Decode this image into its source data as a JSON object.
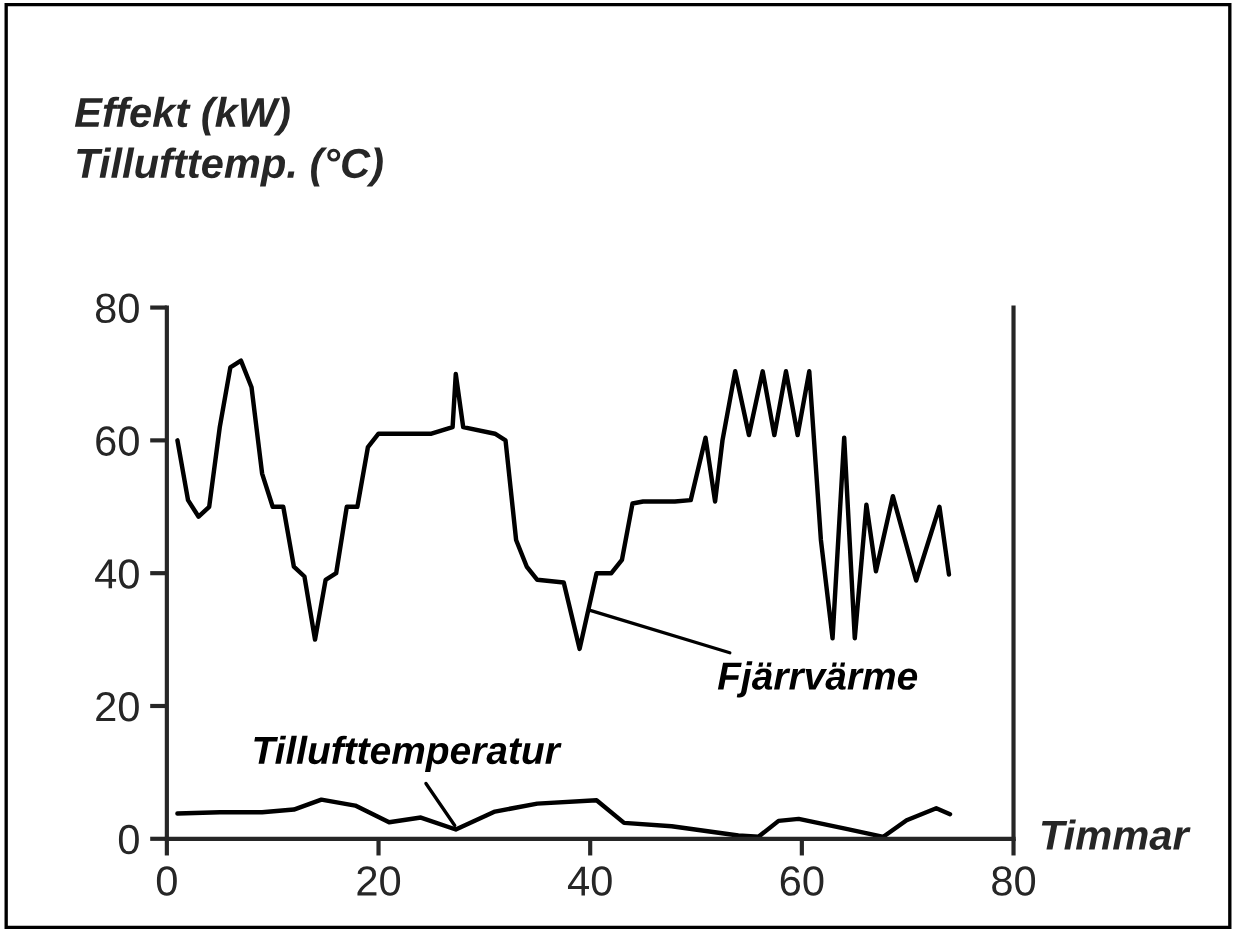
{
  "chart_data": {
    "type": "line",
    "ylabel": "Effekt (kW)\nTillufttemp. (°C)",
    "xlabel": "Timmar",
    "xlim": [
      0,
      80
    ],
    "ylim": [
      0,
      80
    ],
    "xticks": [
      0,
      20,
      40,
      60,
      80
    ],
    "yticks": [
      0,
      20,
      40,
      60,
      80
    ],
    "grid": false,
    "marker": "none",
    "line_style": "solid",
    "series": [
      {
        "name": "Fjärrvärme",
        "color": "#000000",
        "x": [
          1,
          2,
          3,
          4,
          5,
          6,
          7,
          8,
          9,
          10,
          11,
          12,
          13,
          14,
          15,
          16,
          17,
          18,
          19,
          20,
          25,
          27,
          27.3,
          28,
          31,
          32,
          33,
          34,
          35,
          37.5,
          39,
          40.6,
          42,
          43,
          44,
          45,
          48,
          49.5,
          50.9,
          51.8,
          52.5,
          53.7,
          55,
          56.3,
          57.4,
          58.5,
          59.6,
          60.7,
          61.8,
          62.9,
          64,
          65,
          66.1,
          67,
          68.6,
          70.8,
          73,
          73.9
        ],
        "values": [
          60,
          51,
          48.5,
          50,
          62,
          71,
          72,
          68,
          55,
          50,
          50,
          41,
          39.5,
          30,
          39,
          40,
          50,
          50,
          59,
          61,
          61,
          62,
          70,
          62,
          61,
          60,
          45,
          41,
          39,
          38.6,
          28.6,
          40,
          40,
          42,
          50.5,
          50.8,
          50.8,
          51,
          60.4,
          50.8,
          60,
          70.4,
          60.8,
          70.4,
          60.8,
          70.4,
          60.8,
          70.4,
          45,
          30.2,
          60.4,
          30.2,
          50.3,
          40.3,
          51.6,
          38.9,
          50,
          39.8
        ]
      },
      {
        "name": "Tillufttemperatur",
        "color": "#000000",
        "x": [
          1,
          5,
          9,
          12,
          14.6,
          17.8,
          21,
          24,
          27.3,
          31,
          35,
          40.6,
          43.2,
          47.7,
          54,
          55.9,
          57.8,
          59.7,
          64.2,
          67.7,
          69.9,
          72.7,
          74
        ],
        "values": [
          3.8,
          4,
          4,
          4.4,
          5.9,
          5,
          2.5,
          3.2,
          1.4,
          4.1,
          5.3,
          5.8,
          2.4,
          1.9,
          0.5,
          0.3,
          2.7,
          3,
          1.5,
          0.3,
          2.8,
          4.6,
          3.7
        ]
      }
    ]
  }
}
